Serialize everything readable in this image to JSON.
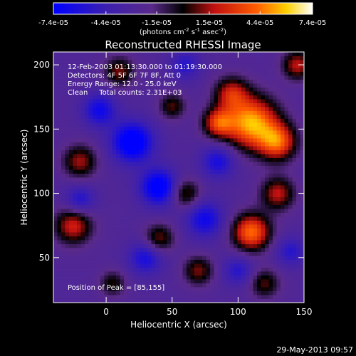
{
  "colorbar": {
    "ticks": [
      "-7.4e-05",
      "-4.4e-05",
      "-1.5e-05",
      "1.5e-05",
      "4.4e-05",
      "7.4e-05"
    ],
    "units_main": "(photons cm",
    "units_exp1": "-2",
    "units_mid": " s",
    "units_exp2": "-1",
    "units_tail": " asec",
    "units_exp3": "-2",
    "units_close": ")",
    "range": [
      -7.4e-05,
      7.4e-05
    ]
  },
  "chart_data": {
    "type": "heatmap",
    "title": "Reconstructed RHESSI Image",
    "xlabel": "Heliocentric X (arcsec)",
    "ylabel": "Heliocentric Y (arcsec)",
    "xlim": [
      -40,
      150
    ],
    "ylim": [
      15,
      210
    ],
    "xticks": [
      0,
      50,
      100,
      150
    ],
    "yticks": [
      50,
      100,
      150,
      200
    ],
    "colormap": "rainbow-blue-purple-black-red-orange-yellow-white",
    "annotations": [
      "12-Feb-2003 01:13:30.000 to 01:19:30.000",
      "Detectors: 4F 5F 6F 7F 8F, Att 0",
      "Energy Range: 12.0 - 25.0 keV",
      "Clean     Total counts: 2.31E+03"
    ],
    "peak_label": "Position of Peak = [85,155]",
    "peak": [
      85,
      155
    ],
    "sources": [
      {
        "x": 110,
        "y": 155,
        "amp": 1.0,
        "sigma": 14
      },
      {
        "x": 130,
        "y": 140,
        "amp": 0.75,
        "sigma": 10
      },
      {
        "x": 95,
        "y": 178,
        "amp": 0.55,
        "sigma": 9
      },
      {
        "x": 85,
        "y": 155,
        "amp": 0.65,
        "sigma": 8
      },
      {
        "x": 110,
        "y": 70,
        "amp": 0.85,
        "sigma": 10
      },
      {
        "x": 130,
        "y": 100,
        "amp": 0.55,
        "sigma": 9
      },
      {
        "x": 60,
        "y": 100,
        "amp": 0.45,
        "sigma": 8
      },
      {
        "x": 40,
        "y": 65,
        "amp": 0.45,
        "sigma": 8
      },
      {
        "x": -25,
        "y": 75,
        "amp": 0.6,
        "sigma": 10
      },
      {
        "x": -20,
        "y": 125,
        "amp": 0.5,
        "sigma": 9
      },
      {
        "x": 10,
        "y": 195,
        "amp": 0.45,
        "sigma": 8
      },
      {
        "x": 50,
        "y": 168,
        "amp": 0.4,
        "sigma": 7
      },
      {
        "x": 145,
        "y": 200,
        "amp": 0.55,
        "sigma": 8
      },
      {
        "x": 70,
        "y": 40,
        "amp": 0.45,
        "sigma": 8
      },
      {
        "x": 120,
        "y": 30,
        "amp": 0.4,
        "sigma": 8
      },
      {
        "x": 5,
        "y": 30,
        "amp": 0.35,
        "sigma": 7
      },
      {
        "x": 20,
        "y": 140,
        "amp": -0.75,
        "sigma": 11
      },
      {
        "x": 40,
        "y": 105,
        "amp": -0.7,
        "sigma": 10
      },
      {
        "x": -5,
        "y": 165,
        "amp": -0.5,
        "sigma": 9
      },
      {
        "x": 75,
        "y": 80,
        "amp": -0.5,
        "sigma": 10
      },
      {
        "x": 85,
        "y": 125,
        "amp": -0.45,
        "sigma": 9
      },
      {
        "x": -20,
        "y": 95,
        "amp": -0.4,
        "sigma": 8
      },
      {
        "x": 30,
        "y": 50,
        "amp": -0.45,
        "sigma": 9
      },
      {
        "x": 100,
        "y": 40,
        "amp": -0.35,
        "sigma": 8
      },
      {
        "x": 140,
        "y": 55,
        "amp": -0.35,
        "sigma": 8
      },
      {
        "x": 60,
        "y": 200,
        "amp": -0.35,
        "sigma": 8
      }
    ]
  },
  "footer": {
    "date": "29-May-2013 09:57"
  }
}
